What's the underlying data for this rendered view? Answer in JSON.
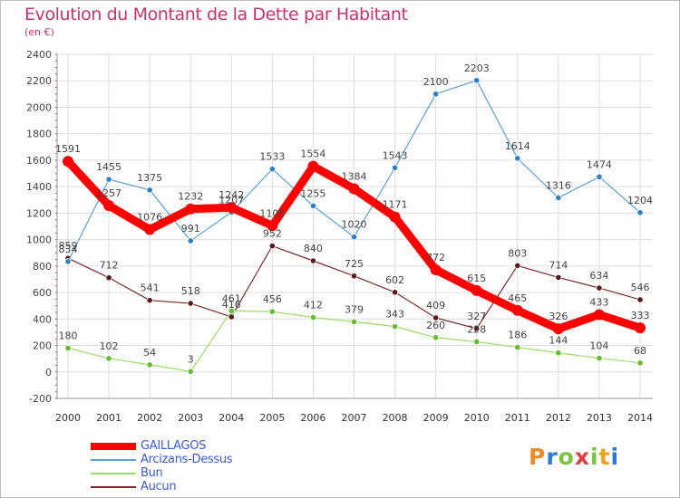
{
  "title": "Evolution du Montant de la Dette par Habitant",
  "unit": "(en €)",
  "logo_text": "Proxiti",
  "chart_data": {
    "type": "line",
    "title": "Evolution du Montant de la Dette par Habitant",
    "ylabel": "(en €)",
    "xlabel": "",
    "x": [
      "2000",
      "2001",
      "2002",
      "2003",
      "2004",
      "2005",
      "2006",
      "2007",
      "2008",
      "2009",
      "2010",
      "2011",
      "2012",
      "2013",
      "2014"
    ],
    "ylim": [
      -200,
      2400
    ],
    "yticks": [
      -200,
      0,
      200,
      400,
      600,
      800,
      1000,
      1200,
      1400,
      1600,
      1800,
      2000,
      2200,
      2400
    ],
    "grid": true,
    "legend_position": "bottom-left",
    "series": [
      {
        "name": "GAILLAGOS",
        "color": "#ff0000",
        "values": [
          1591,
          1257,
          1076,
          1232,
          1242,
          1105,
          1554,
          1384,
          1171,
          772,
          615,
          465,
          326,
          433,
          333
        ]
      },
      {
        "name": "Arcizans-Dessus",
        "color": "#5ba1d6",
        "values": [
          834,
          1455,
          1375,
          991,
          1207,
          1533,
          1255,
          1020,
          1543,
          2100,
          2203,
          1614,
          1316,
          1474,
          1204
        ]
      },
      {
        "name": "Bun",
        "color": "#99dd66",
        "values": [
          180,
          102,
          54,
          3,
          461,
          456,
          412,
          379,
          343,
          260,
          228,
          186,
          144,
          104,
          68
        ]
      },
      {
        "name": "Aucun",
        "color": "#7a2a2a",
        "values": [
          859,
          712,
          541,
          518,
          416,
          952,
          840,
          725,
          602,
          409,
          327,
          803,
          714,
          634,
          546
        ]
      }
    ],
    "labels": [
      [
        "1591",
        "1257",
        "1076",
        "1232",
        "1242",
        "1105",
        "1554",
        "1384",
        "1171",
        "772",
        "615",
        "465",
        "326",
        "433",
        "333"
      ],
      [
        "834",
        "1455",
        "1375",
        "991",
        "1207",
        "1533",
        "1255",
        "1020",
        "1543",
        "2100",
        "2203",
        "1614",
        "1316",
        "1474",
        "1204"
      ],
      [
        "180",
        "102",
        "54",
        "3",
        "461",
        "456",
        "412",
        "379",
        "343",
        "260",
        "228",
        "186",
        "144",
        "104",
        "68"
      ],
      [
        "859",
        "712",
        "541",
        "518",
        "416",
        "952",
        "840",
        "725",
        "602",
        "409",
        "327",
        "803",
        "714",
        "634",
        "546"
      ]
    ]
  }
}
